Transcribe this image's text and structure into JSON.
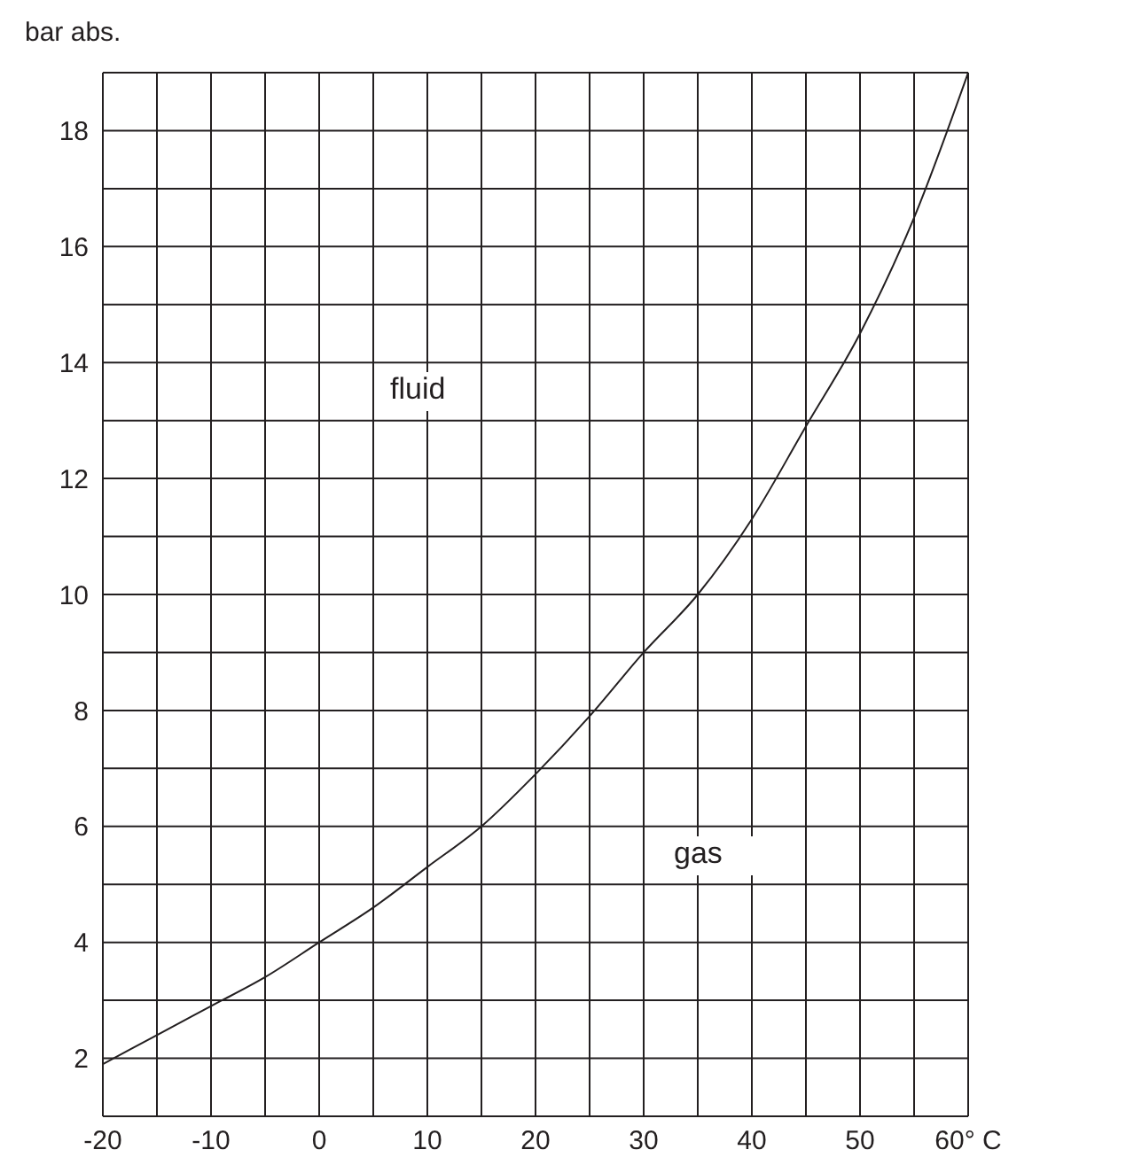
{
  "chart_data": {
    "type": "line",
    "ylabel": "bar abs.",
    "x": [
      -20,
      -15,
      -10,
      -5,
      0,
      5,
      10,
      15,
      20,
      25,
      30,
      35,
      40,
      45,
      50,
      55,
      60
    ],
    "series": [
      {
        "color": "#231f20",
        "values": [
          1.9,
          2.4,
          2.9,
          3.4,
          4.0,
          4.6,
          5.3,
          6.0,
          6.9,
          7.9,
          9.0,
          10.0,
          11.3,
          12.9,
          14.5,
          16.5,
          19.0
        ]
      }
    ],
    "xlim": [
      -20,
      60
    ],
    "xticks": [
      -20,
      {
        "value": -15,
        "label": null
      },
      -10,
      {
        "value": -5,
        "label": null
      },
      0,
      {
        "value": 5,
        "label": null
      },
      10,
      {
        "value": 15,
        "label": null
      },
      20,
      {
        "value": 25,
        "label": null
      },
      30,
      {
        "value": 35,
        "label": null
      },
      40,
      {
        "value": 45,
        "label": null
      },
      50,
      {
        "value": 55,
        "label": null
      },
      {
        "value": 60,
        "label": "60° C"
      }
    ],
    "ylim": [
      1,
      19
    ],
    "yticks": [
      {
        "value": 1,
        "label": null
      },
      2,
      {
        "value": 3,
        "label": null
      },
      4,
      {
        "value": 5,
        "label": null
      },
      6,
      {
        "value": 7,
        "label": null
      },
      8,
      {
        "value": 9,
        "label": null
      },
      10,
      {
        "value": 11,
        "label": null
      },
      12,
      {
        "value": 13,
        "label": null
      },
      14,
      {
        "value": 15,
        "label": null
      },
      16,
      {
        "value": 17,
        "label": null
      },
      18,
      {
        "value": 19,
        "label": null
      }
    ],
    "grid": true,
    "marker": "none",
    "line_style": "solid",
    "annotations": [
      "fluid",
      "gas"
    ]
  }
}
